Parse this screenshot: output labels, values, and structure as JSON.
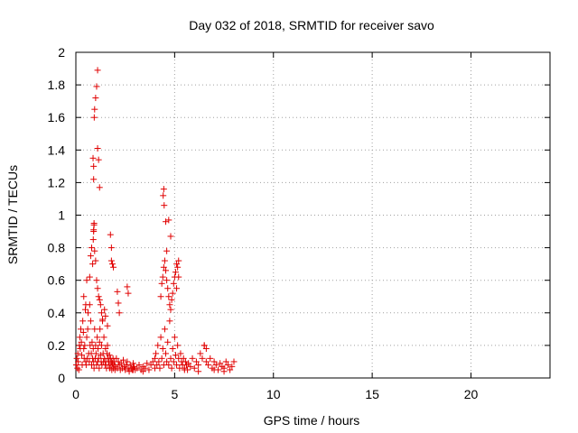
{
  "chart_data": {
    "type": "scatter",
    "title": "Day 032 of 2018, SRMTID for receiver savo",
    "xlabel": "GPS time / hours",
    "ylabel": "SRMTID / TECUs",
    "xlim": [
      0,
      24
    ],
    "ylim": [
      0,
      2
    ],
    "x_ticks": [
      0,
      5,
      10,
      15,
      20
    ],
    "x_tick_labels": [
      "0",
      "5",
      "10",
      "15",
      "20"
    ],
    "y_ticks": [
      0,
      0.2,
      0.4,
      0.6,
      0.8,
      1,
      1.2,
      1.4,
      1.6,
      1.8,
      2
    ],
    "y_tick_labels": [
      "0",
      "0.2",
      "0.4",
      "0.6",
      "0.8",
      "1",
      "1.2",
      "1.4",
      "1.6",
      "1.8",
      "2"
    ],
    "grid": true,
    "marker": "+",
    "marker_color": "#e00000",
    "series": [
      {
        "name": "SRMTID",
        "x": [
          0.02,
          0.05,
          0.08,
          0.1,
          0.12,
          0.15,
          0.18,
          0.2,
          0.22,
          0.25,
          0.28,
          0.3,
          0.32,
          0.35,
          0.38,
          0.4,
          0.42,
          0.45,
          0.48,
          0.5,
          0.52,
          0.55,
          0.58,
          0.6,
          0.62,
          0.65,
          0.68,
          0.7,
          0.72,
          0.75,
          0.78,
          0.8,
          0.82,
          0.85,
          0.88,
          0.9,
          0.92,
          0.95,
          0.98,
          1.0,
          1.02,
          1.05,
          1.08,
          1.1,
          1.12,
          1.15,
          1.18,
          1.2,
          1.22,
          1.25,
          1.28,
          1.3,
          1.32,
          1.35,
          1.38,
          1.4,
          1.42,
          1.45,
          1.48,
          1.5,
          1.52,
          1.55,
          1.58,
          1.6,
          1.62,
          1.65,
          1.68,
          1.7,
          1.72,
          1.75,
          1.78,
          1.8,
          1.82,
          1.85,
          1.88,
          1.9,
          1.92,
          1.95,
          1.98,
          2.0,
          2.05,
          2.1,
          2.15,
          2.2,
          2.25,
          2.3,
          2.35,
          2.4,
          2.45,
          2.5,
          2.55,
          2.6,
          2.65,
          2.7,
          2.75,
          2.8,
          2.85,
          2.9,
          2.95,
          3.0,
          3.1,
          3.2,
          3.3,
          3.4,
          3.5,
          3.6,
          3.7,
          3.8,
          3.9,
          4.0,
          4.05,
          4.1,
          4.15,
          4.2,
          4.25,
          4.3,
          4.35,
          4.4,
          4.45,
          4.5,
          4.55,
          4.6,
          4.65,
          4.7,
          4.75,
          4.8,
          4.85,
          4.9,
          4.95,
          5.0,
          5.05,
          5.1,
          5.15,
          5.2,
          5.25,
          5.3,
          5.35,
          5.4,
          5.45,
          5.5,
          5.55,
          5.6,
          5.65,
          5.7,
          5.8,
          5.9,
          6.0,
          6.1,
          6.2,
          6.3,
          6.4,
          6.5,
          6.6,
          6.7,
          6.8,
          6.9,
          7.0,
          7.1,
          7.2,
          7.3,
          7.4,
          7.5,
          7.6,
          7.7,
          7.8,
          7.9,
          8.0,
          0.4,
          0.5,
          0.55,
          0.7,
          0.75,
          0.8,
          0.85,
          0.88,
          0.9,
          0.92,
          0.95,
          1.0,
          1.05,
          1.1,
          1.15,
          1.2,
          1.25,
          1.3,
          1.35,
          1.45,
          1.5,
          1.6,
          1.75,
          1.8,
          1.85,
          1.9,
          2.1,
          2.15,
          2.2,
          2.6,
          2.65,
          4.3,
          4.35,
          4.4,
          4.45,
          4.5,
          4.55,
          4.6,
          4.65,
          4.7,
          4.75,
          4.8,
          4.85,
          4.9,
          4.95,
          5.0,
          5.05,
          5.1,
          5.15,
          5.2,
          6.5,
          6.6,
          0.87,
          0.9,
          0.93,
          0.95,
          1.0,
          1.05,
          1.1,
          4.42,
          4.47,
          4.55,
          4.6,
          0.9,
          4.45,
          4.7,
          4.8,
          1.1,
          1.15,
          1.2,
          0.92,
          0.9,
          5.2,
          5.1,
          1.8,
          2.9,
          3.4,
          4.0,
          5.5,
          6.2,
          7.0,
          7.5
        ],
        "y": [
          0.08,
          0.12,
          0.06,
          0.15,
          0.1,
          0.05,
          0.2,
          0.25,
          0.18,
          0.3,
          0.22,
          0.14,
          0.08,
          0.35,
          0.28,
          0.18,
          0.12,
          0.2,
          0.42,
          0.1,
          0.08,
          0.25,
          0.12,
          0.3,
          0.4,
          0.15,
          0.1,
          0.45,
          0.2,
          0.35,
          0.15,
          0.08,
          0.22,
          0.12,
          0.18,
          0.1,
          0.06,
          0.3,
          0.12,
          0.2,
          0.15,
          0.08,
          0.25,
          0.1,
          0.18,
          0.12,
          0.06,
          0.22,
          0.3,
          0.14,
          0.1,
          0.2,
          0.08,
          0.35,
          0.15,
          0.1,
          0.25,
          0.12,
          0.08,
          0.18,
          0.1,
          0.06,
          0.15,
          0.2,
          0.12,
          0.08,
          0.1,
          0.14,
          0.06,
          0.12,
          0.08,
          0.1,
          0.05,
          0.09,
          0.12,
          0.06,
          0.08,
          0.1,
          0.05,
          0.07,
          0.12,
          0.06,
          0.1,
          0.08,
          0.05,
          0.09,
          0.06,
          0.11,
          0.07,
          0.05,
          0.08,
          0.1,
          0.06,
          0.04,
          0.08,
          0.06,
          0.05,
          0.09,
          0.07,
          0.05,
          0.06,
          0.08,
          0.05,
          0.07,
          0.06,
          0.09,
          0.05,
          0.08,
          0.1,
          0.12,
          0.15,
          0.08,
          0.2,
          0.1,
          0.06,
          0.25,
          0.12,
          0.18,
          0.08,
          0.3,
          0.15,
          0.1,
          0.22,
          0.08,
          0.35,
          0.12,
          0.06,
          0.18,
          0.1,
          0.25,
          0.14,
          0.08,
          0.2,
          0.12,
          0.06,
          0.15,
          0.1,
          0.08,
          0.12,
          0.06,
          0.1,
          0.08,
          0.05,
          0.09,
          0.07,
          0.12,
          0.06,
          0.1,
          0.08,
          0.15,
          0.12,
          0.2,
          0.1,
          0.08,
          0.12,
          0.06,
          0.1,
          0.08,
          0.05,
          0.09,
          0.07,
          0.06,
          0.1,
          0.08,
          0.05,
          0.07,
          0.1,
          0.5,
          0.45,
          0.6,
          0.62,
          0.75,
          0.8,
          0.7,
          0.85,
          0.9,
          0.95,
          0.78,
          0.72,
          0.6,
          0.55,
          0.5,
          0.48,
          0.45,
          0.4,
          0.36,
          0.42,
          0.38,
          0.32,
          0.88,
          0.8,
          0.7,
          0.68,
          0.53,
          0.46,
          0.4,
          0.56,
          0.52,
          0.5,
          0.58,
          0.62,
          0.68,
          0.72,
          0.66,
          0.6,
          0.55,
          0.5,
          0.45,
          0.42,
          0.48,
          0.52,
          0.58,
          0.62,
          0.65,
          0.7,
          0.68,
          0.62,
          0.2,
          0.18,
          1.35,
          1.3,
          1.6,
          1.65,
          1.72,
          1.79,
          1.89,
          1.12,
          1.06,
          0.96,
          0.78,
          1.22,
          1.16,
          0.97,
          0.87,
          1.41,
          1.34,
          1.17,
          0.94,
          0.91,
          0.72,
          0.55,
          0.72,
          0.05,
          0.04,
          0.06,
          0.05,
          0.04,
          0.05,
          0.04
        ]
      }
    ]
  }
}
